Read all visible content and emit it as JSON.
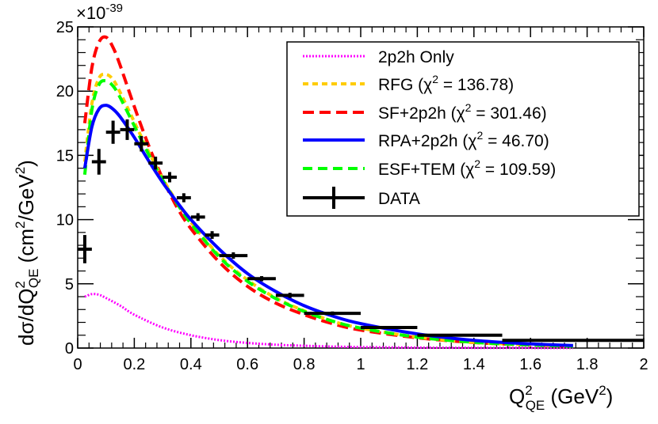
{
  "chart_data": {
    "type": "line",
    "xlabel": {
      "main": "Q",
      "sup": "2",
      "sub": "QE",
      "unit_pre": " (GeV",
      "unit_sup": "2",
      "unit_post": ")"
    },
    "ylabel": {
      "pre": "dσ/dQ",
      "sup": "2",
      "sub": "QE",
      "unit_pre": " (cm",
      "unit_sup1": "2",
      "unit_mid": "/GeV",
      "unit_sup2": "2",
      "unit_post": ")"
    },
    "y_multiplier": {
      "base": "×10",
      "exponent": "-39"
    },
    "xlim": [
      0,
      2
    ],
    "ylim": [
      0,
      25
    ],
    "xticks": [
      "0",
      "0.2",
      "0.4",
      "0.6",
      "0.8",
      "1",
      "1.2",
      "1.4",
      "1.6",
      "1.8",
      "2"
    ],
    "xtick_values": [
      0,
      0.2,
      0.4,
      0.6,
      0.8,
      1,
      1.2,
      1.4,
      1.6,
      1.8,
      2
    ],
    "yticks": [
      "0",
      "5",
      "10",
      "15",
      "20",
      "25"
    ],
    "ytick_values": [
      0,
      5,
      10,
      15,
      20,
      25
    ],
    "legend": {
      "position": "top-right",
      "entries": [
        {
          "pre": "2p2h Only",
          "sup": "",
          "post": ""
        },
        {
          "pre": "RFG (χ",
          "sup": "2",
          "post": " = 136.78)"
        },
        {
          "pre": "SF+2p2h (χ",
          "sup": "2",
          "post": " = 301.46)"
        },
        {
          "pre": "RPA+2p2h (χ",
          "sup": "2",
          "post": " = 46.70)"
        },
        {
          "pre": "ESF+TEM (χ",
          "sup": "2",
          "post": " = 109.59)"
        },
        {
          "pre": "DATA",
          "sup": "",
          "post": ""
        }
      ]
    },
    "series": [
      {
        "name": "2p2h Only",
        "style": "dotted",
        "color": "#ff00ff",
        "x": [
          0.025,
          0.05,
          0.075,
          0.1,
          0.15,
          0.2,
          0.3,
          0.4,
          0.5,
          0.6,
          0.7,
          0.8,
          0.9,
          1.0,
          1.2,
          1.4,
          1.6,
          1.75
        ],
        "y": [
          4.0,
          4.2,
          4.15,
          3.9,
          3.3,
          2.6,
          1.6,
          1.0,
          0.62,
          0.4,
          0.26,
          0.18,
          0.12,
          0.08,
          0.04,
          0.02,
          0.01,
          0.005
        ]
      },
      {
        "name": "RFG",
        "style": "dotted-dash",
        "color": "#ffcc00",
        "x": [
          0.025,
          0.05,
          0.075,
          0.1,
          0.125,
          0.15,
          0.2,
          0.25,
          0.3,
          0.35,
          0.4,
          0.5,
          0.6,
          0.7,
          0.8,
          0.9,
          1.0,
          1.2,
          1.4,
          1.6,
          1.75
        ],
        "y": [
          14.5,
          19.0,
          21.0,
          21.3,
          20.9,
          19.9,
          17.6,
          15.3,
          13.2,
          11.4,
          9.8,
          7.2,
          5.3,
          3.9,
          2.9,
          2.1,
          1.55,
          0.85,
          0.45,
          0.24,
          0.15
        ]
      },
      {
        "name": "SF+2p2h",
        "style": "dashed",
        "color": "#ff0000",
        "x": [
          0.025,
          0.05,
          0.075,
          0.1,
          0.125,
          0.15,
          0.2,
          0.25,
          0.3,
          0.35,
          0.4,
          0.5,
          0.6,
          0.7,
          0.8,
          0.9,
          1.0,
          1.2,
          1.4,
          1.6,
          1.75
        ],
        "y": [
          17.5,
          21.8,
          23.8,
          24.2,
          23.4,
          22.0,
          18.8,
          15.8,
          13.2,
          11.0,
          9.3,
          6.7,
          4.8,
          3.5,
          2.6,
          1.9,
          1.4,
          0.8,
          0.43,
          0.24,
          0.15
        ]
      },
      {
        "name": "RPA+2p2h",
        "style": "solid",
        "color": "#0000ff",
        "x": [
          0.025,
          0.05,
          0.075,
          0.1,
          0.125,
          0.15,
          0.2,
          0.25,
          0.3,
          0.35,
          0.4,
          0.5,
          0.6,
          0.7,
          0.8,
          0.9,
          1.0,
          1.2,
          1.4,
          1.6,
          1.75
        ],
        "y": [
          14.0,
          17.2,
          18.6,
          18.9,
          18.6,
          18.0,
          16.4,
          14.6,
          12.9,
          11.4,
          10.0,
          7.7,
          5.8,
          4.4,
          3.3,
          2.5,
          1.9,
          1.1,
          0.6,
          0.32,
          0.2
        ]
      },
      {
        "name": "ESF+TEM",
        "style": "dashed",
        "color": "#00ff00",
        "x": [
          0.025,
          0.05,
          0.075,
          0.1,
          0.125,
          0.15,
          0.2,
          0.25,
          0.3,
          0.35,
          0.4,
          0.5,
          0.6,
          0.7,
          0.8,
          0.9,
          1.0,
          1.2,
          1.4,
          1.6,
          1.75
        ],
        "y": [
          13.5,
          18.5,
          20.5,
          20.8,
          20.4,
          19.5,
          17.3,
          15.1,
          13.1,
          11.3,
          9.7,
          7.1,
          5.2,
          3.85,
          2.85,
          2.1,
          1.55,
          0.85,
          0.45,
          0.24,
          0.15
        ]
      },
      {
        "name": "DATA",
        "style": "points",
        "color": "#000000",
        "x": [
          0.025,
          0.075,
          0.125,
          0.175,
          0.225,
          0.275,
          0.325,
          0.375,
          0.425,
          0.475,
          0.55,
          0.65,
          0.75,
          0.9,
          1.1,
          1.35,
          1.75
        ],
        "xlo": [
          0.0,
          0.05,
          0.1,
          0.15,
          0.2,
          0.25,
          0.3,
          0.35,
          0.4,
          0.45,
          0.5,
          0.6,
          0.7,
          0.8,
          1.0,
          1.2,
          1.5
        ],
        "xhi": [
          0.05,
          0.1,
          0.15,
          0.2,
          0.25,
          0.3,
          0.35,
          0.4,
          0.45,
          0.5,
          0.6,
          0.7,
          0.8,
          1.0,
          1.2,
          1.5,
          2.0
        ],
        "y": [
          7.7,
          14.5,
          16.8,
          17.0,
          15.9,
          14.4,
          13.3,
          11.7,
          10.2,
          8.8,
          7.2,
          5.4,
          4.1,
          2.7,
          1.6,
          1.0,
          0.6
        ],
        "err": [
          1.1,
          1.0,
          0.9,
          0.8,
          0.6,
          0.5,
          0.4,
          0.35,
          0.3,
          0.3,
          0.25,
          0.2,
          0.2,
          0.15,
          0.12,
          0.1,
          0.08
        ]
      }
    ]
  }
}
